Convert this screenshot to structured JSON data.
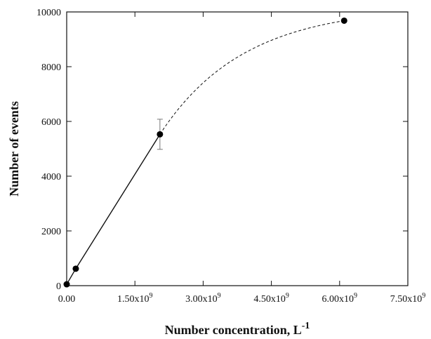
{
  "chart_data": {
    "type": "line",
    "title": "",
    "xlabel": "Number concentration, L",
    "xlabel_superscript": "-1",
    "ylabel": "Number of events",
    "xlim": [
      0,
      7500000000
    ],
    "ylim": [
      0,
      10000
    ],
    "x_ticks": [
      {
        "value": 0,
        "mantissa": "0.00",
        "exp": ""
      },
      {
        "value": 1500000000,
        "mantissa": "1.50x10",
        "exp": "9"
      },
      {
        "value": 3000000000,
        "mantissa": "3.00x10",
        "exp": "9"
      },
      {
        "value": 4500000000,
        "mantissa": "4.50x10",
        "exp": "9"
      },
      {
        "value": 6000000000,
        "mantissa": "6.00x10",
        "exp": "9"
      },
      {
        "value": 7500000000,
        "mantissa": "7.50x10",
        "exp": "9"
      }
    ],
    "y_ticks": [
      0,
      2000,
      4000,
      6000,
      8000,
      10000
    ],
    "grid": false,
    "series": [
      {
        "line_style": "solid",
        "x": [
          0,
          200000000,
          2050000000
        ],
        "y": [
          50,
          620,
          5530
        ],
        "error": [
          0,
          0,
          550
        ]
      },
      {
        "line_style": "dashed",
        "x": [
          2050000000,
          6100000000
        ],
        "y": [
          5530,
          9680
        ],
        "error": [
          0,
          0
        ]
      }
    ],
    "points": [
      {
        "x": 0,
        "y": 50,
        "error": 0
      },
      {
        "x": 200000000,
        "y": 620,
        "error": 0
      },
      {
        "x": 2050000000,
        "y": 5530,
        "error": 550
      },
      {
        "x": 6100000000,
        "y": 9680,
        "error": 0
      }
    ]
  }
}
